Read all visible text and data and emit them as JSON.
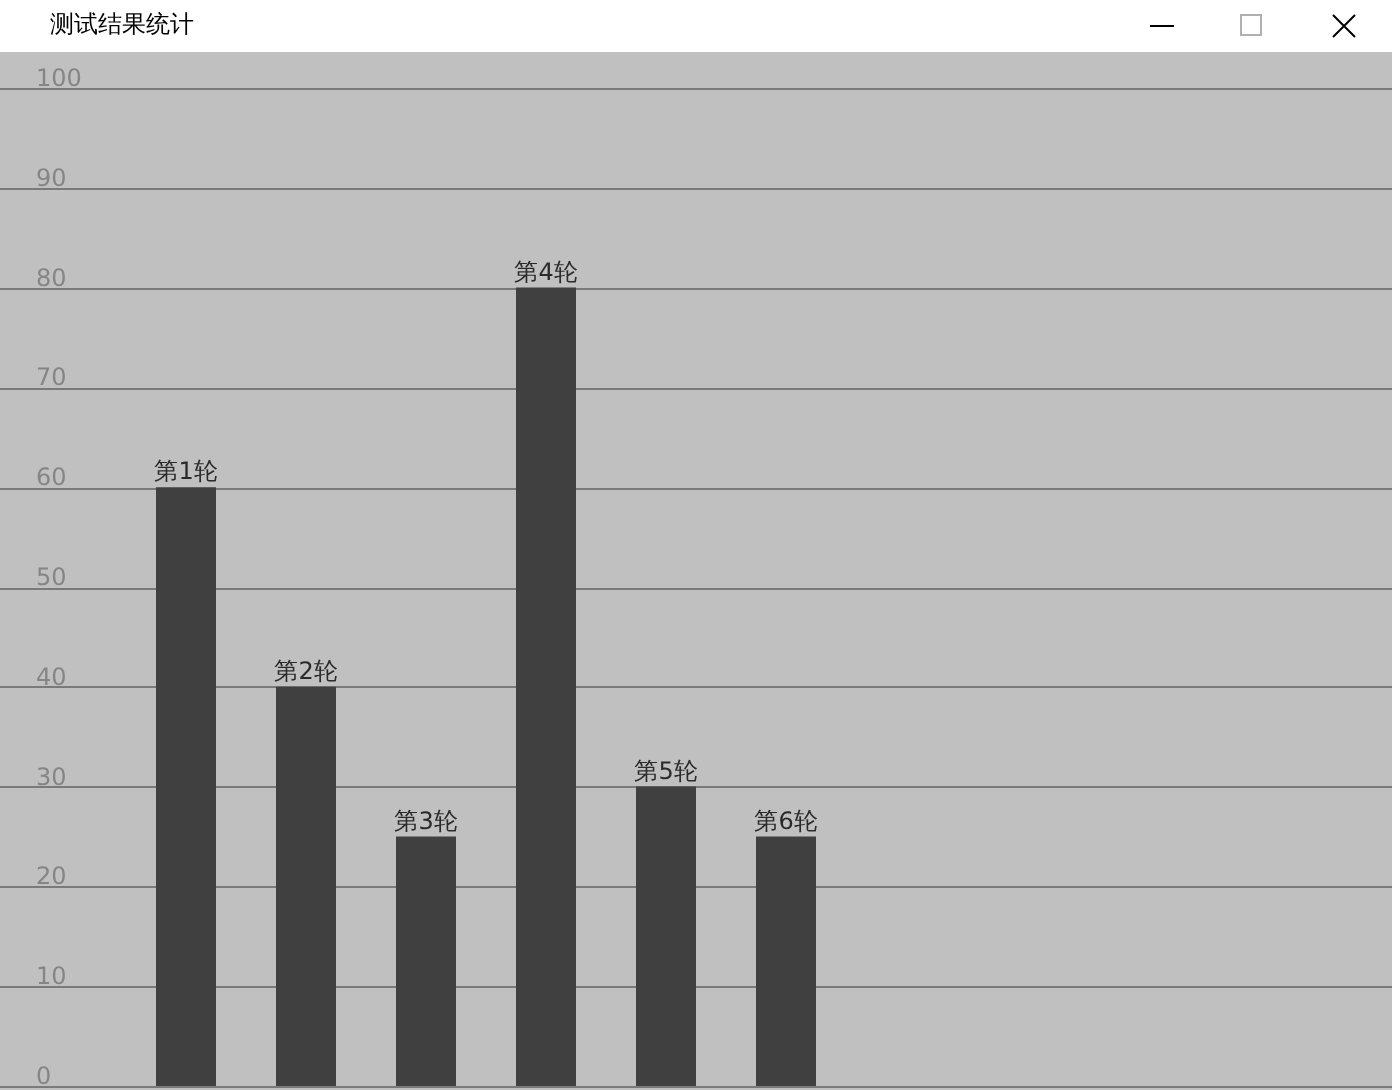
{
  "chart_data": {
    "type": "bar",
    "title": "测试结果统计",
    "categories": [
      "第1轮",
      "第2轮",
      "第3轮",
      "第4轮",
      "第5轮",
      "第6轮"
    ],
    "values": [
      60,
      40,
      25,
      80,
      30,
      25
    ],
    "color": "#404040",
    "ylim": [
      0,
      100
    ],
    "yticks": [
      0,
      10,
      20,
      30,
      40,
      50,
      60,
      70,
      80,
      90,
      100
    ],
    "grid": "y"
  }
}
